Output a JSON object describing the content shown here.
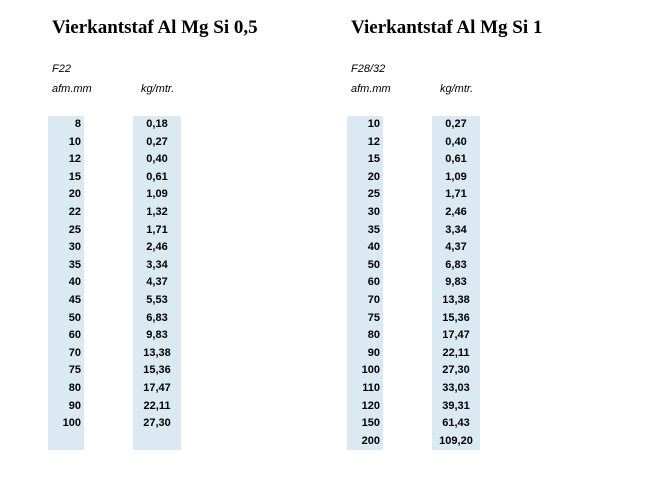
{
  "left": {
    "title": "Vierkantstaf Al Mg Si 0,5",
    "spec": "F22",
    "header_afm": "afm.mm",
    "header_kg": "kg/mtr.",
    "rows": [
      {
        "afm": "8",
        "kg": "0,18"
      },
      {
        "afm": "10",
        "kg": "0,27"
      },
      {
        "afm": "12",
        "kg": "0,40"
      },
      {
        "afm": "15",
        "kg": "0,61"
      },
      {
        "afm": "20",
        "kg": "1,09"
      },
      {
        "afm": "22",
        "kg": "1,32"
      },
      {
        "afm": "25",
        "kg": "1,71"
      },
      {
        "afm": "30",
        "kg": "2,46"
      },
      {
        "afm": "35",
        "kg": "3,34"
      },
      {
        "afm": "40",
        "kg": "4,37"
      },
      {
        "afm": "45",
        "kg": "5,53"
      },
      {
        "afm": "50",
        "kg": "6,83"
      },
      {
        "afm": "60",
        "kg": "9,83"
      },
      {
        "afm": "70",
        "kg": "13,38"
      },
      {
        "afm": "75",
        "kg": "15,36"
      },
      {
        "afm": "80",
        "kg": "17,47"
      },
      {
        "afm": "90",
        "kg": "22,11"
      },
      {
        "afm": "100",
        "kg": "27,30"
      },
      {
        "afm": "",
        "kg": ""
      }
    ]
  },
  "right": {
    "title": "Vierkantstaf Al Mg Si 1",
    "spec": "F28/32",
    "header_afm": "afm.mm",
    "header_kg": "kg/mtr.",
    "rows": [
      {
        "afm": "10",
        "kg": "0,27"
      },
      {
        "afm": "12",
        "kg": "0,40"
      },
      {
        "afm": "15",
        "kg": "0,61"
      },
      {
        "afm": "20",
        "kg": "1,09"
      },
      {
        "afm": "25",
        "kg": "1,71"
      },
      {
        "afm": "30",
        "kg": "2,46"
      },
      {
        "afm": "35",
        "kg": "3,34"
      },
      {
        "afm": "40",
        "kg": "4,37"
      },
      {
        "afm": "50",
        "kg": "6,83"
      },
      {
        "afm": "60",
        "kg": "9,83"
      },
      {
        "afm": "70",
        "kg": "13,38"
      },
      {
        "afm": "75",
        "kg": "15,36"
      },
      {
        "afm": "80",
        "kg": "17,47"
      },
      {
        "afm": "90",
        "kg": "22,11"
      },
      {
        "afm": "100",
        "kg": "27,30"
      },
      {
        "afm": "110",
        "kg": "33,03"
      },
      {
        "afm": "120",
        "kg": "39,31"
      },
      {
        "afm": "150",
        "kg": "61,43"
      },
      {
        "afm": "200",
        "kg": "109,20"
      }
    ]
  },
  "colors": {
    "column_fill": "#dbe9f3",
    "text": "#000000",
    "background": "#ffffff"
  }
}
